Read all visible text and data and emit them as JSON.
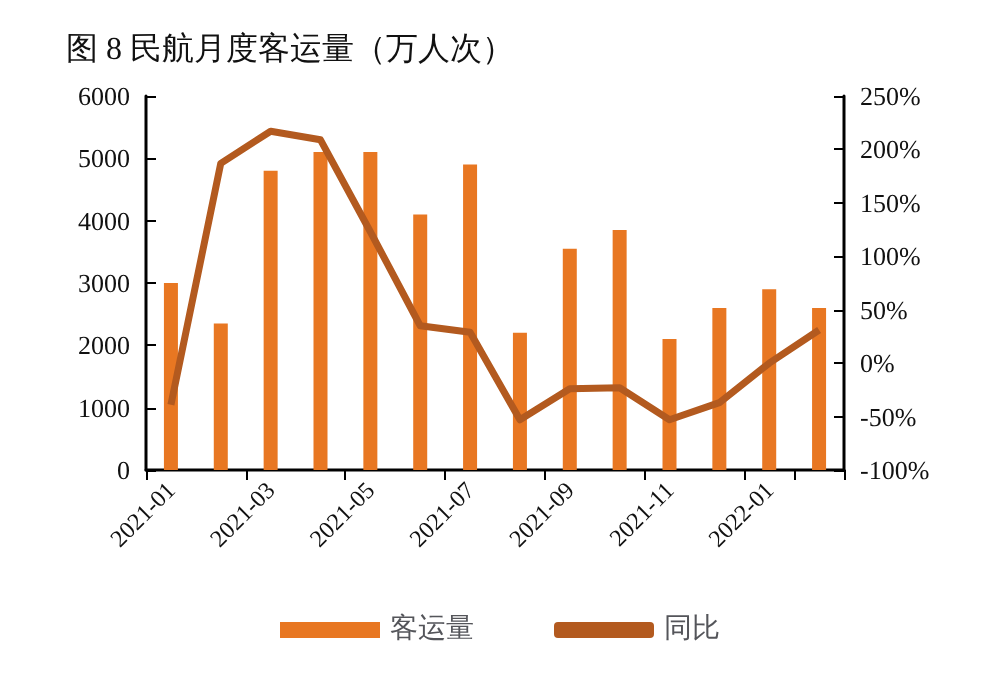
{
  "chart_data": {
    "type": "bar",
    "title": "图 8 民航月度客运量（万人次）",
    "categories": [
      "2021-01",
      null,
      "2021-03",
      null,
      "2021-05",
      null,
      "2021-07",
      null,
      "2021-09",
      null,
      "2021-11",
      null,
      "2022-01",
      null
    ],
    "series": [
      {
        "name": "客运量",
        "color": "#e87722",
        "values": [
          3000,
          2350,
          4800,
          5100,
          5100,
          4100,
          4900,
          2200,
          3550,
          3850,
          2100,
          2600,
          2900,
          2600
        ]
      },
      {
        "name": "同比",
        "type": "line",
        "axis": "y2",
        "color": "#b35a1f",
        "values": [
          -39,
          187,
          217,
          209,
          123,
          35,
          29,
          -53,
          -24,
          -23,
          -53,
          -37,
          0,
          31
        ]
      }
    ],
    "ylim": [
      0,
      6000
    ],
    "yticks": [
      0,
      1000,
      2000,
      3000,
      4000,
      5000,
      6000
    ],
    "y2lim": [
      -100,
      250
    ],
    "y2ticks": [
      {
        "value": -100,
        "label": "-100%"
      },
      {
        "value": -50,
        "label": "-50%"
      },
      {
        "value": 0,
        "label": "0%"
      },
      {
        "value": 50,
        "label": "50%"
      },
      {
        "value": 100,
        "label": "100%"
      },
      {
        "value": 150,
        "label": "150%"
      },
      {
        "value": 200,
        "label": "200%"
      },
      {
        "value": 250,
        "label": "250%"
      }
    ],
    "grid": false,
    "legend": "bottom",
    "marker": "none",
    "line_style": "solid"
  }
}
